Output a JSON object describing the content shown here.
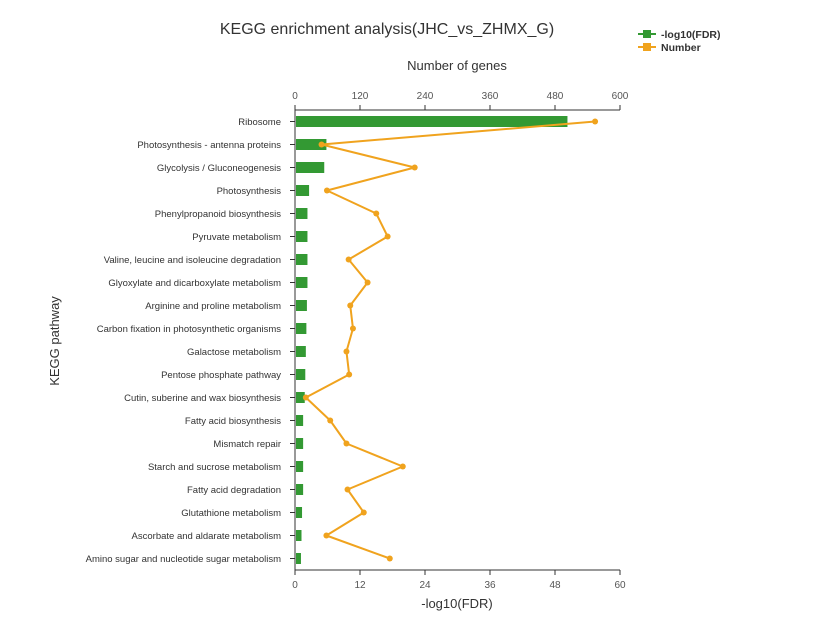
{
  "chart_data": {
    "type": "bar",
    "title": "KEGG enrichment analysis(JHC_vs_ZHMX_G)",
    "ylabel": "KEGG pathway",
    "top_axis": {
      "label": "Number of genes",
      "lim": [
        0,
        600
      ],
      "ticks": [
        "0",
        "120",
        "240",
        "360",
        "480",
        "600"
      ]
    },
    "bottom_axis": {
      "label": "-log10(FDR)",
      "lim": [
        0,
        60
      ],
      "ticks": [
        "0",
        "12",
        "24",
        "36",
        "48",
        "60"
      ]
    },
    "legend_position": "top-right",
    "categories": [
      "Ribosome",
      "Photosynthesis - antenna proteins",
      "Glycolysis / Gluconeogenesis",
      "Photosynthesis",
      "Phenylpropanoid biosynthesis",
      "Pyruvate metabolism",
      "Valine, leucine and isoleucine degradation",
      "Glyoxylate and dicarboxylate metabolism",
      "Arginine and proline metabolism",
      "Carbon fixation in photosynthetic organisms",
      "Galactose metabolism",
      "Pentose phosphate pathway",
      "Cutin, suberine and wax biosynthesis",
      "Fatty acid biosynthesis",
      "Mismatch repair",
      "Starch and sucrose metabolism",
      "Fatty acid degradation",
      "Glutathione metabolism",
      "Ascorbate and aldarate metabolism",
      "Amino sugar and nucleotide sugar metabolism"
    ],
    "series": [
      {
        "name": "-log10(FDR)",
        "type": "bar",
        "axis": "bottom",
        "color": "#339933",
        "values": [
          50.3,
          5.8,
          5.4,
          2.6,
          2.3,
          2.3,
          2.3,
          2.3,
          2.2,
          2.1,
          2.0,
          1.9,
          1.8,
          1.5,
          1.5,
          1.5,
          1.5,
          1.3,
          1.2,
          1.1
        ]
      },
      {
        "name": "Number",
        "type": "line",
        "axis": "top",
        "color": "#f0a31e",
        "values": [
          554,
          49,
          221,
          59,
          150,
          171,
          99,
          134,
          102,
          107,
          95,
          100,
          20,
          65,
          95,
          199,
          97,
          127,
          58,
          175
        ]
      }
    ]
  }
}
